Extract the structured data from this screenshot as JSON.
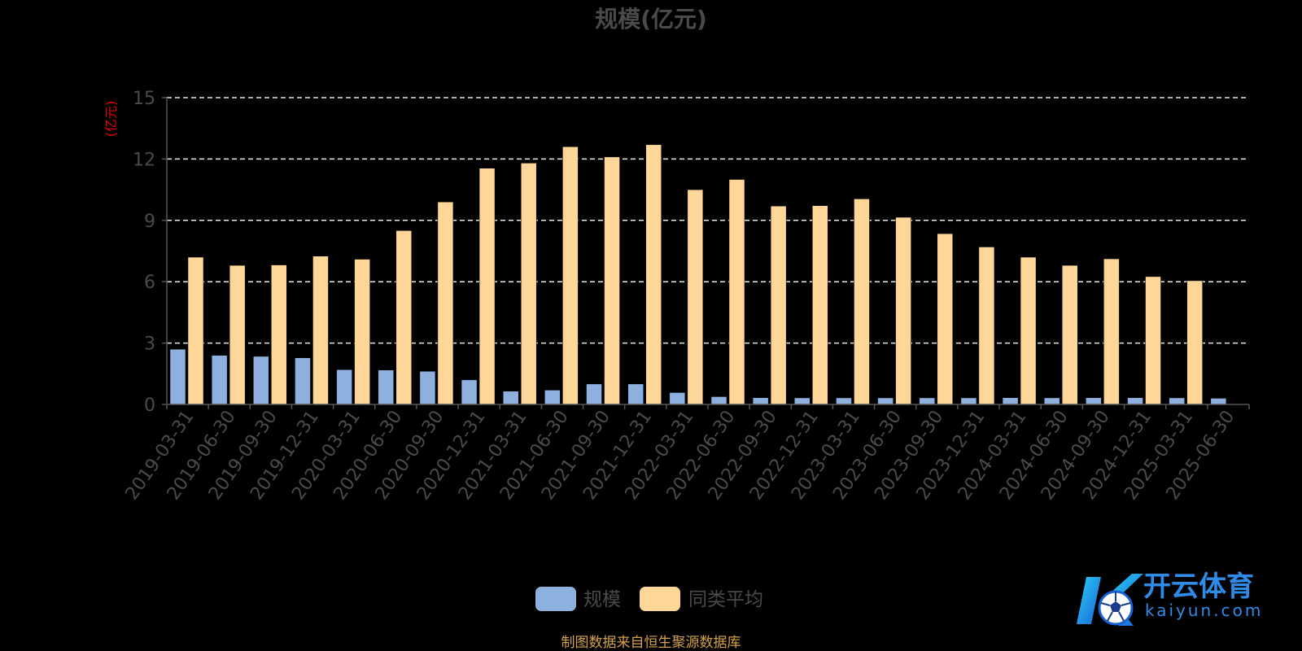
{
  "chart_data": {
    "type": "bar",
    "title": "规模(亿元)",
    "ylabel": "(亿元)",
    "ylim": [
      0,
      15
    ],
    "yticks": [
      0,
      3,
      6,
      9,
      12,
      15
    ],
    "grid": true,
    "legend_position": "bottom",
    "categories": [
      "2019-03-31",
      "2019-06-30",
      "2019-09-30",
      "2019-12-31",
      "2020-03-31",
      "2020-06-30",
      "2020-09-30",
      "2020-12-31",
      "2021-03-31",
      "2021-06-30",
      "2021-09-30",
      "2021-12-31",
      "2022-03-31",
      "2022-06-30",
      "2022-09-30",
      "2022-12-31",
      "2023-03-31",
      "2023-06-30",
      "2023-09-30",
      "2023-12-31",
      "2024-03-31",
      "2024-06-30",
      "2024-09-30",
      "2024-12-31",
      "2025-03-31",
      "2025-06-30"
    ],
    "series": [
      {
        "name": "规模",
        "color": "#8eb0de",
        "values": [
          2.7,
          2.4,
          2.35,
          2.28,
          1.7,
          1.68,
          1.62,
          1.2,
          0.65,
          0.7,
          1.0,
          1.0,
          0.58,
          0.38,
          0.33,
          0.32,
          0.32,
          0.32,
          0.32,
          0.32,
          0.33,
          0.32,
          0.33,
          0.33,
          0.32,
          0.3
        ]
      },
      {
        "name": "同类平均",
        "color": "#fdd698",
        "values": [
          7.2,
          6.8,
          6.82,
          7.25,
          7.1,
          8.5,
          9.9,
          11.55,
          11.8,
          12.6,
          12.1,
          12.7,
          10.5,
          11.0,
          9.7,
          9.72,
          10.05,
          9.15,
          8.35,
          7.7,
          7.2,
          6.8,
          7.12,
          6.25,
          6.05,
          null
        ]
      }
    ],
    "source_note": "制图数据来自恒生聚源数据库"
  },
  "logo": {
    "text_cn": "开云体育",
    "text_en": "kaiyun.com"
  }
}
